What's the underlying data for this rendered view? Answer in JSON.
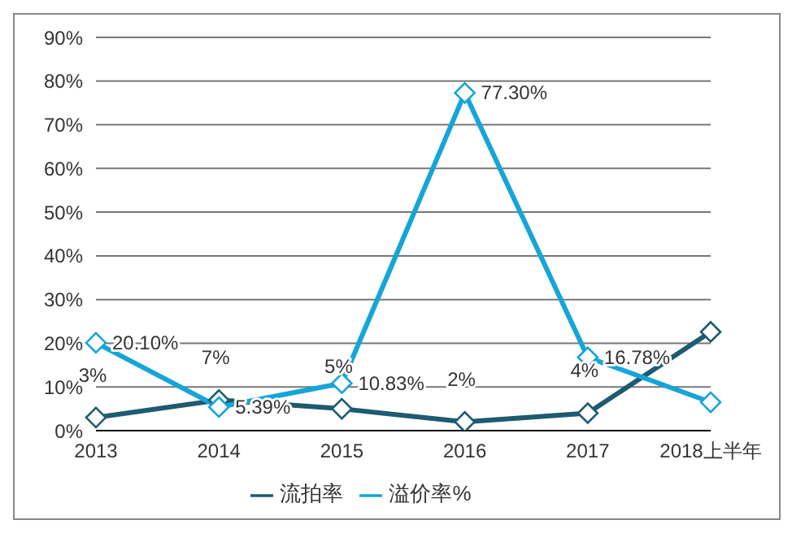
{
  "chart_data": {
    "type": "line",
    "categories": [
      "2013",
      "2014",
      "2015",
      "2016",
      "2017",
      "2018上半年"
    ],
    "series": [
      {
        "name": "流拍率",
        "color": "#1d5b70",
        "values": [
          3,
          7,
          5,
          2,
          4,
          22.6
        ],
        "value_labels": [
          "3%",
          "7%",
          "5%",
          "2%",
          "4%",
          null
        ]
      },
      {
        "name": "溢价率%",
        "color": "#16a5d8",
        "values": [
          20.1,
          5.39,
          10.83,
          77.3,
          16.78,
          6.5
        ],
        "value_labels": [
          "20.10%",
          "5.39%",
          "10.83%",
          "77.30%",
          "16.78%",
          null
        ]
      }
    ],
    "ylim": [
      0,
      90
    ],
    "yticks": [
      {
        "value": 0,
        "label": "0%"
      },
      {
        "value": 10,
        "label": "10%"
      },
      {
        "value": 20,
        "label": "20%"
      },
      {
        "value": 30,
        "label": "30%"
      },
      {
        "value": 40,
        "label": "40%"
      },
      {
        "value": 50,
        "label": "50%"
      },
      {
        "value": 60,
        "label": "60%"
      },
      {
        "value": 70,
        "label": "70%"
      },
      {
        "value": 80,
        "label": "80%"
      },
      {
        "value": 90,
        "label": "90%"
      }
    ],
    "grid": "y",
    "legend": "bottom",
    "marker": "diamond",
    "line_style": "solid"
  }
}
